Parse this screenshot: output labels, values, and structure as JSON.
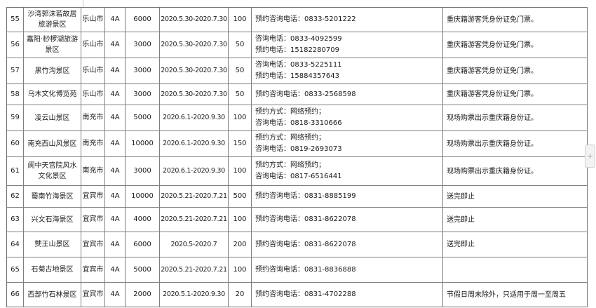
{
  "page": {
    "background_color": "#ffffff",
    "border_color": "#7f7f7f"
  },
  "floating_button": {
    "label": "+"
  },
  "table": {
    "rows": [
      {
        "no": "55",
        "name": "沙湾郭沫若故居旅游景区",
        "city": "乐山市",
        "grade": "4A",
        "quantity": "6000",
        "period": "2020.5.30-2020.7.30",
        "limit": "100",
        "contact": [
          "预约咨询电话：0833-5201222"
        ],
        "note": "重庆籍游客凭身份证免门票。"
      },
      {
        "no": "56",
        "name": "嘉阳·桫椤湖旅游景区",
        "city": "乐山市",
        "grade": "4A",
        "quantity": "3000",
        "period": "2020.5.30-2020.7.30",
        "limit": "50",
        "contact": [
          "咨询电话：0833-4092599",
          "预约电话：15182280709"
        ],
        "note": "重庆籍游客凭身份证免门票。"
      },
      {
        "no": "57",
        "name": "黑竹沟景区",
        "city": "乐山市",
        "grade": "4A",
        "quantity": "3000",
        "period": "2020.5.30-2020.7.30",
        "limit": "50",
        "contact": [
          "咨询电话：0833-5225111",
          "预约电话：15884357643"
        ],
        "note": "重庆籍游客凭身份证免门票。"
      },
      {
        "no": "58",
        "name": "乌木文化博览苑",
        "city": "乐山市",
        "grade": "4A",
        "quantity": "3000",
        "period": "2020.5.30-2020.7.30",
        "limit": "50",
        "contact": [
          "预约咨询电话：0833-2568598"
        ],
        "note": "重庆籍游客凭身份证免门票。"
      },
      {
        "no": "59",
        "name": "凌云山景区",
        "city": "南充市",
        "grade": "4A",
        "quantity": "5000",
        "period": "2020.6.1-2020.9.30",
        "limit": "100",
        "contact": [
          "预约方式：网络预约；",
          "咨询电话：0818-3310666"
        ],
        "note": "现场购票出示重庆籍身份证。"
      },
      {
        "no": "60",
        "name": "南充西山风景区",
        "city": "南充市",
        "grade": "4A",
        "quantity": "10000",
        "period": "2020.6.1-2020.9.30",
        "limit": "150",
        "contact": [
          "预约方式：网络预约；",
          "咨询电话：0819-2693073"
        ],
        "note": "现场购票出示重庆籍身份证。"
      },
      {
        "no": "61",
        "name": "阆中天宫院风水文化景区",
        "city": "南充市",
        "grade": "4A",
        "quantity": "3000",
        "period": "2020.6.1-2020.9.30",
        "limit": "100",
        "contact": [
          "预约方式：网络预约；",
          "咨询电话：0817-6516441"
        ],
        "note": "现场购票出示重庆籍身份证。"
      },
      {
        "no": "62",
        "name": "蜀南竹海景区",
        "city": "宜宾市",
        "grade": "4A",
        "quantity": "10000",
        "period": "2020.5.21-2020.7.21",
        "limit": "500",
        "contact": [
          "预约咨询电话：0831-8885199"
        ],
        "note": "送完即止"
      },
      {
        "no": "63",
        "name": "兴文石海景区",
        "city": "宜宾市",
        "grade": "4A",
        "quantity": "4000",
        "period": "2020.5.21-2020.7.21",
        "limit": "100",
        "contact": [
          "预约咨询电话：0831-8622078"
        ],
        "note": "送完即止"
      },
      {
        "no": "64",
        "name": "僰王山景区",
        "city": "宜宾市",
        "grade": "4A",
        "quantity": "6000",
        "period": "2020.5-2020.7",
        "limit": "200",
        "contact": [
          "预约咨询电话：0831-8622078"
        ],
        "note": "送完即止"
      },
      {
        "no": "65",
        "name": "石菊古地景区",
        "city": "宜宾市",
        "grade": "4A",
        "quantity": "5000",
        "period": "2020.5.21-2020.7.21",
        "limit": "100",
        "contact": [
          "预约咨询电话：0831-8836888"
        ],
        "note": ""
      },
      {
        "no": "66",
        "name": "西部竹石林景区",
        "city": "宜宾市",
        "grade": "4A",
        "quantity": "2000",
        "period": "2020.5.1-2020.9.30",
        "limit": "20",
        "contact": [
          "预约咨询电话：0831-4702288"
        ],
        "note": "节假日周末除外，只适用于周一至周五"
      }
    ]
  }
}
